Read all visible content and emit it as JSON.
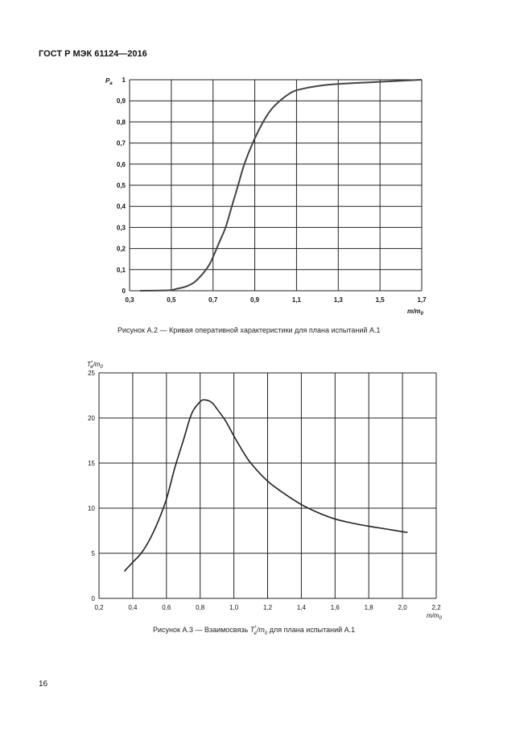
{
  "header": "ГОСТ Р МЭК 61124—2016",
  "page_number": "16",
  "chart_data": [
    {
      "type": "line",
      "title": "Рисунок А.2 — Кривая оперативной характеристики для плана испытаний А.1",
      "xlabel": "m/m",
      "xlabel_sub": "0",
      "ylabel": "P",
      "ylabel_sub": "a",
      "xlim": [
        0.3,
        1.7
      ],
      "ylim": [
        0,
        1
      ],
      "grid": true,
      "xticks": [
        "0,3",
        "0,5",
        "0,7",
        "0,9",
        "1,1",
        "1,3",
        "1,5",
        "1,7"
      ],
      "yticks": [
        "0",
        "0,1",
        "0,2",
        "0,3",
        "0,4",
        "0,5",
        "0,6",
        "0,7",
        "0,8",
        "0,9",
        "1"
      ],
      "series": [
        {
          "name": "Pa",
          "x": [
            0.35,
            0.45,
            0.5,
            0.53,
            0.57,
            0.61,
            0.65,
            0.68,
            0.7,
            0.73,
            0.76,
            0.79,
            0.82,
            0.85,
            0.89,
            0.94,
            0.98,
            1.02,
            1.06,
            1.1,
            1.2,
            1.3,
            1.5,
            1.7
          ],
          "y": [
            0,
            0.001,
            0.003,
            0.01,
            0.02,
            0.04,
            0.08,
            0.12,
            0.16,
            0.23,
            0.3,
            0.4,
            0.5,
            0.6,
            0.7,
            0.8,
            0.86,
            0.9,
            0.93,
            0.95,
            0.97,
            0.98,
            0.99,
            1.0
          ]
        }
      ]
    },
    {
      "type": "line",
      "title_prefix": "Рисунок А.3 — Взаимосвязь ",
      "title_T": "T",
      "title_T_sup": "*",
      "title_T_sub": "e",
      "title_mid": "/m",
      "title_m_sub": "0",
      "title_suffix": " для плана испытаний А.1",
      "xlabel": "m/m",
      "xlabel_sub": "0",
      "ylabel": "T",
      "ylabel_sup": "*",
      "ylabel_sub": "e",
      "ylabel_rest": "/m",
      "ylabel_rest_sub": "0",
      "xlim": [
        0.2,
        2.2
      ],
      "ylim": [
        0,
        25
      ],
      "grid": true,
      "xticks": [
        "0,2",
        "0,4",
        "0,6",
        "0,8",
        "1,0",
        "1,2",
        "1,4",
        "1,6",
        "1,8",
        "2,0",
        "2,2"
      ],
      "yticks": [
        "0",
        "5",
        "10",
        "15",
        "20",
        "25"
      ],
      "series": [
        {
          "name": "Te/m0",
          "x": [
            0.35,
            0.4,
            0.45,
            0.5,
            0.55,
            0.6,
            0.65,
            0.7,
            0.75,
            0.8,
            0.83,
            0.87,
            0.9,
            0.95,
            1.0,
            1.05,
            1.1,
            1.2,
            1.3,
            1.4,
            1.5,
            1.6,
            1.7,
            1.8,
            1.9,
            2.03
          ],
          "y": [
            3,
            4,
            5,
            6.5,
            8.5,
            11,
            14.5,
            17.5,
            20.5,
            21.8,
            22,
            21.7,
            21,
            19.7,
            18,
            16.4,
            15,
            13,
            11.6,
            10.4,
            9.5,
            8.8,
            8.35,
            8,
            7.7,
            7.3
          ]
        }
      ]
    }
  ]
}
